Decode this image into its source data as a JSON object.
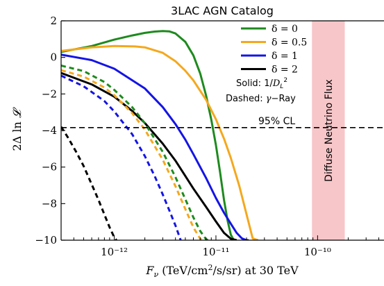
{
  "chart_data": {
    "type": "line",
    "title": "3LAC AGN Catalog",
    "xlabel": "F_ν (TeV/cm²/s/sr) at 30 TeV",
    "ylabel": "2Δ ln 𝓛",
    "x_scale": "log",
    "xlim": [
      3e-13,
      4.5e-10
    ],
    "ylim": [
      -10,
      2
    ],
    "x_ticks": [
      1e-12,
      1e-11,
      1e-10
    ],
    "x_tick_labels": [
      "10⁻¹²",
      "10⁻¹¹",
      "10⁻¹⁰"
    ],
    "y_ticks": [
      2,
      0,
      -2,
      -4,
      -6,
      -8,
      -10
    ],
    "y_tick_labels": [
      "2",
      "0",
      "−2",
      "−4",
      "−6",
      "−8",
      "−10"
    ],
    "cl_line": {
      "y": -3.84,
      "label": "95% CL"
    },
    "neutrino_band": {
      "x_range": [
        8.8e-11,
        1.85e-10
      ],
      "label": "Diffuse Neutrino Flux",
      "color": "#f7c6c9"
    },
    "style_note": {
      "solid": "Solid: 1/D_L²",
      "dashed": "Dashed: γ−Ray"
    },
    "series": [
      {
        "name": "δ = 0",
        "color": "#1e8a1e",
        "style": "solid",
        "x": [
          3e-13,
          6e-13,
          1e-12,
          1.5e-12,
          2e-12,
          2.5e-12,
          3e-12,
          3.5e-12,
          4e-12,
          5e-12,
          6e-12,
          7e-12,
          8e-12,
          9e-12,
          1e-11,
          1.1e-11,
          1.2e-11,
          1.3e-11,
          1.4e-11,
          1.5e-11
        ],
        "y": [
          0.3,
          0.62,
          0.97,
          1.2,
          1.34,
          1.41,
          1.44,
          1.42,
          1.31,
          0.85,
          0.11,
          -0.88,
          -2.09,
          -3.41,
          -4.81,
          -6.3,
          -7.8,
          -8.9,
          -9.7,
          -10
        ]
      },
      {
        "name": "δ = 0.5",
        "color": "#f4a81d",
        "style": "solid",
        "x": [
          3e-13,
          6e-13,
          1e-12,
          1.6e-12,
          2e-12,
          3e-12,
          4e-12,
          5e-12,
          6e-12,
          8e-12,
          1e-11,
          1.2e-11,
          1.4e-11,
          1.7e-11,
          2e-11,
          2.3e-11,
          2.6e-11
        ],
        "y": [
          0.35,
          0.55,
          0.62,
          0.6,
          0.55,
          0.25,
          -0.21,
          -0.73,
          -1.26,
          -2.32,
          -3.39,
          -4.45,
          -5.5,
          -7.04,
          -8.58,
          -9.9,
          -10
        ]
      },
      {
        "name": "δ = 1",
        "color": "#1414e6",
        "style": "solid",
        "x": [
          3e-13,
          6e-13,
          1e-12,
          2e-12,
          3e-12,
          4e-12,
          5e-12,
          6e-12,
          8e-12,
          1e-11,
          1.2e-11,
          1.4e-11,
          1.6e-11,
          1.8e-11,
          2e-11,
          2.1e-11
        ],
        "y": [
          0.15,
          -0.15,
          -0.62,
          -1.7,
          -2.72,
          -3.65,
          -4.5,
          -5.3,
          -6.6,
          -7.7,
          -8.5,
          -9.1,
          -9.6,
          -9.9,
          -10,
          -10
        ]
      },
      {
        "name": "δ = 2",
        "color": "#000000",
        "style": "solid",
        "x": [
          3e-13,
          6e-13,
          1e-12,
          1.5e-12,
          2e-12,
          3e-12,
          4e-12,
          5e-12,
          6e-12,
          8e-12,
          1e-11,
          1.2e-11,
          1.4e-11,
          1.6e-11
        ],
        "y": [
          -0.85,
          -1.48,
          -2.15,
          -2.93,
          -3.59,
          -4.72,
          -5.65,
          -6.49,
          -7.18,
          -8.18,
          -8.98,
          -9.6,
          -9.92,
          -10
        ]
      },
      {
        "name": "δ = 0 (γ−Ray)",
        "color": "#1e8a1e",
        "style": "dashed",
        "x": [
          3e-13,
          5e-13,
          8e-13,
          1e-12,
          1.5e-12,
          2e-12,
          3e-12,
          4e-12,
          5e-12,
          6e-12,
          7e-12,
          8e-12,
          8.5e-12
        ],
        "y": [
          -0.45,
          -0.75,
          -1.35,
          -1.78,
          -2.72,
          -3.6,
          -5.17,
          -6.55,
          -7.76,
          -8.76,
          -9.5,
          -9.95,
          -10
        ]
      },
      {
        "name": "δ = 0.5 (γ−Ray)",
        "color": "#f4a81d",
        "style": "dashed",
        "x": [
          3e-13,
          5e-13,
          8e-13,
          1e-12,
          1.5e-12,
          2e-12,
          3e-12,
          4e-12,
          5e-12,
          6e-12,
          7e-12,
          7.5e-12
        ],
        "y": [
          -0.7,
          -1.05,
          -1.65,
          -2.07,
          -3.05,
          -3.95,
          -5.6,
          -7.05,
          -8.3,
          -9.3,
          -9.92,
          -10
        ]
      },
      {
        "name": "δ = 1 (γ−Ray)",
        "color": "#1414e6",
        "style": "dashed",
        "x": [
          3e-13,
          5e-13,
          8e-13,
          1e-12,
          1.5e-12,
          2e-12,
          2.5e-12,
          3e-12,
          3.5e-12,
          4e-12,
          4.5e-12
        ],
        "y": [
          -1.0,
          -1.58,
          -2.39,
          -2.96,
          -4.2,
          -5.4,
          -6.5,
          -7.5,
          -8.4,
          -9.2,
          -10
        ]
      },
      {
        "name": "δ = 2 (γ−Ray)",
        "color": "#000000",
        "style": "dashed",
        "x": [
          3e-13,
          3.5e-13,
          4.2e-13,
          5e-13,
          6e-13,
          7e-13,
          8e-13,
          9e-13,
          1e-12,
          1.05e-12
        ],
        "y": [
          -3.8,
          -4.38,
          -5.15,
          -5.95,
          -6.95,
          -7.8,
          -8.6,
          -9.3,
          -9.85,
          -10
        ]
      }
    ],
    "legend": {
      "position": "top-right",
      "entries": [
        {
          "label": "δ = 0",
          "color": "#1e8a1e"
        },
        {
          "label": "δ = 0.5",
          "color": "#f4a81d"
        },
        {
          "label": "δ = 1",
          "color": "#1414e6"
        },
        {
          "label": "δ = 2",
          "color": "#000000"
        }
      ]
    }
  }
}
